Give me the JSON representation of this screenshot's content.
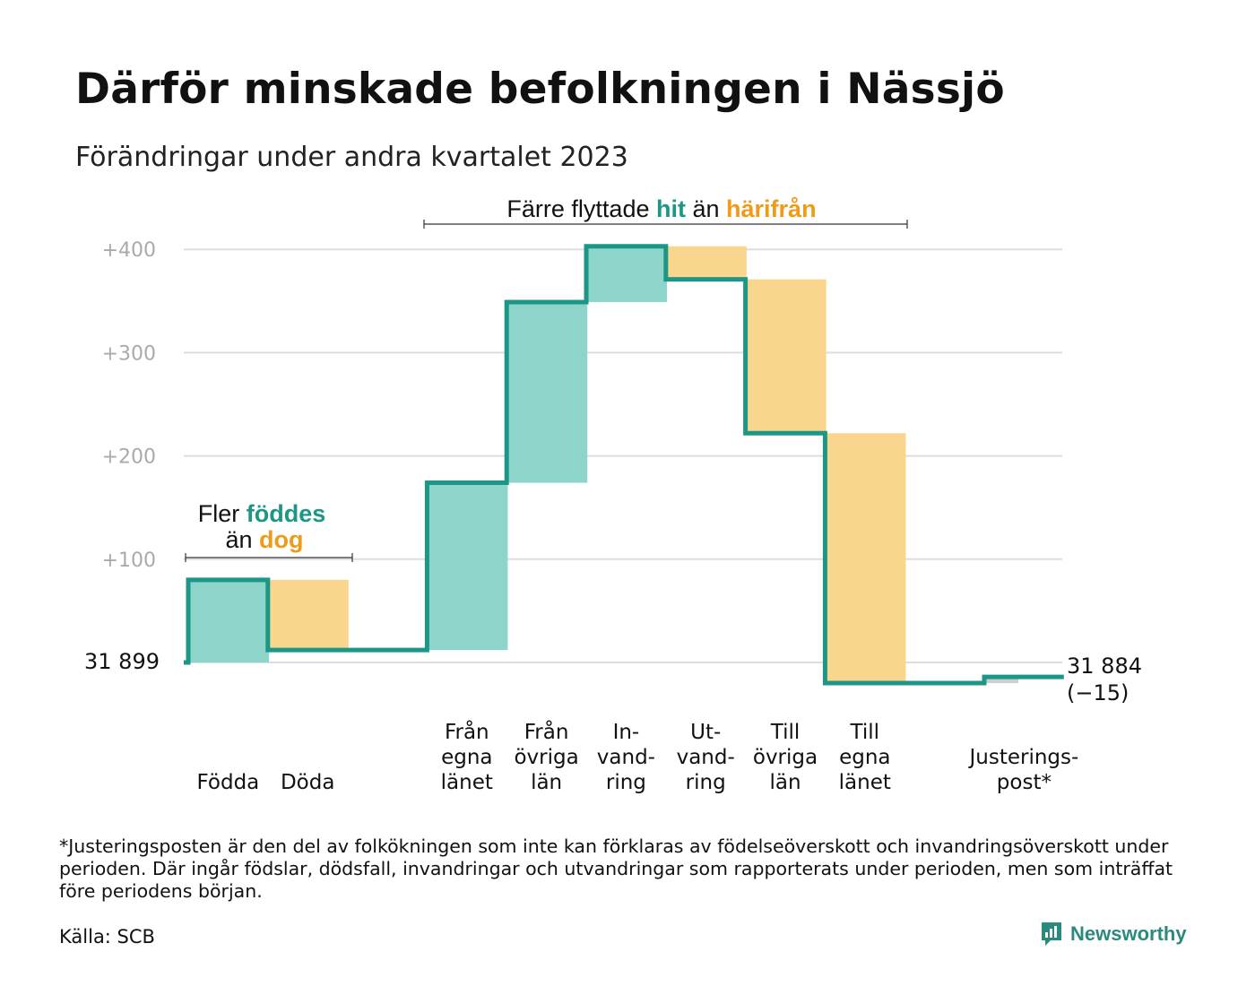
{
  "title": "Därför minskade befolkningen i Nässjö",
  "subtitle": "Förändringar under andra kvartalet 2023",
  "footnote": "*Justeringsposten är den del av folkökningen som inte kan förklaras av födelseöverskott och invandringsöverskott under perioden. Där ingår födslar, dödsfall, invandringar och utvandringar som rapporterats under perioden, men som inträffat före periodens början.",
  "source": "Källa: SCB",
  "brand": "Newsworthy",
  "colors": {
    "increase_fill": "#8dd5cb",
    "decrease_fill": "#fad58d",
    "adjust_fill": "#cfcfcf",
    "line": "#1c9686",
    "teal_text": "#1c9686",
    "orange_text": "#f09a1a",
    "grid": "#dddddd",
    "tick_text": "#aaaaaa"
  },
  "chart_data": {
    "type": "waterfall",
    "start_value": 0,
    "start_label": "31  899",
    "end_label": "31 884",
    "end_change": "(−15)",
    "ylim": [
      -40,
      420
    ],
    "yticks": [
      {
        "value": 100,
        "label": "+100"
      },
      {
        "value": 200,
        "label": "+200"
      },
      {
        "value": 300,
        "label": "+300"
      },
      {
        "value": 400,
        "label": "+400"
      }
    ],
    "grid": true,
    "categories": [
      {
        "lines": [
          "Födda"
        ],
        "delta": 80
      },
      {
        "lines": [
          "Döda"
        ],
        "delta": -68
      },
      {
        "lines": [],
        "delta": 0
      },
      {
        "lines": [
          "Från",
          "egna",
          "länet"
        ],
        "delta": 162
      },
      {
        "lines": [
          "Från",
          "övriga",
          "län"
        ],
        "delta": 175
      },
      {
        "lines": [
          "In-",
          "vand-",
          "ring"
        ],
        "delta": 54
      },
      {
        "lines": [
          "Ut-",
          "vand-",
          "ring"
        ],
        "delta": -32
      },
      {
        "lines": [
          "Till",
          "övriga",
          "län"
        ],
        "delta": -149
      },
      {
        "lines": [
          "Till",
          "egna",
          "länet"
        ],
        "delta": -242
      },
      {
        "lines": [],
        "delta": 0
      },
      {
        "lines": [
          "Justerings-",
          "post*"
        ],
        "delta": 6
      }
    ],
    "annotations": [
      {
        "pre": "Fler ",
        "hl1": "föddes",
        "line2_pre": "än ",
        "hl2": "dog"
      },
      {
        "pre": "Färre flyttade ",
        "hl1": "hit",
        "mid": " än ",
        "hl2": "härifrån"
      }
    ]
  }
}
